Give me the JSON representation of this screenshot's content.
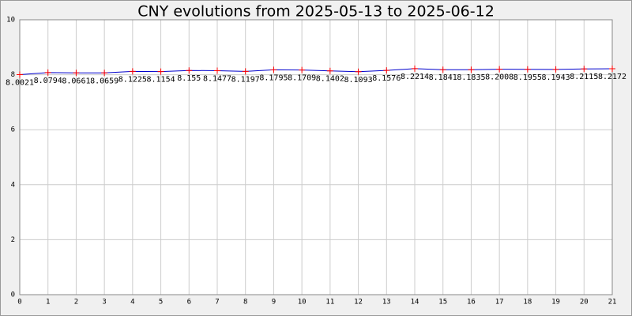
{
  "chart_data": {
    "type": "line",
    "title": "CNY evolutions from 2025-05-13 to 2025-06-12",
    "x": [
      0,
      1,
      2,
      3,
      4,
      5,
      6,
      7,
      8,
      9,
      10,
      11,
      12,
      13,
      14,
      15,
      16,
      17,
      18,
      19,
      20,
      21
    ],
    "series": [
      {
        "name": "CNY",
        "color": "#0000cc",
        "marker_color": "#ff0000",
        "values": [
          8.0021,
          8.0794,
          8.0661,
          8.0659,
          8.1225,
          8.1154,
          8.155,
          8.1477,
          8.1197,
          8.1795,
          8.1709,
          8.1402,
          8.1093,
          8.1576,
          8.2214,
          8.1841,
          8.1835,
          8.2008,
          8.1955,
          8.1943,
          8.2115,
          8.2172
        ]
      }
    ],
    "xlim": [
      0,
      21
    ],
    "xticks": [
      0,
      1,
      2,
      3,
      4,
      5,
      6,
      7,
      8,
      9,
      10,
      11,
      12,
      13,
      14,
      15,
      16,
      17,
      18,
      19,
      20,
      21
    ],
    "ylim": [
      0,
      10
    ],
    "yticks": [
      0,
      2,
      4,
      6,
      8,
      10
    ],
    "grid": true
  }
}
